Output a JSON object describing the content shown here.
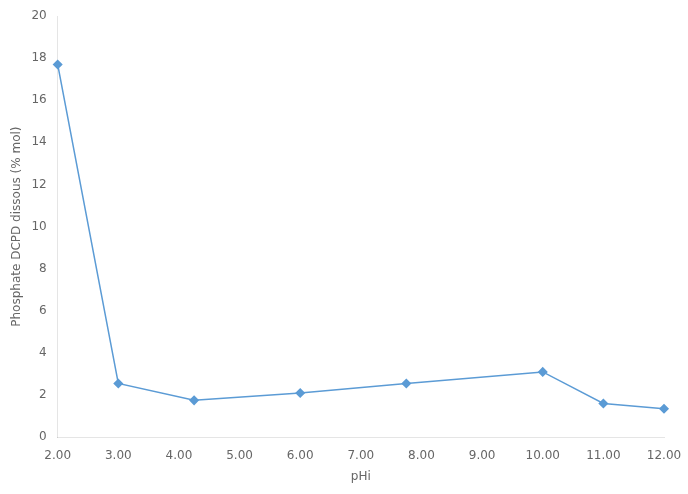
{
  "chart_data": {
    "type": "line",
    "xlabel": "pHi",
    "ylabel": "Phosphate DCPD dissous (% mol)",
    "x": [
      2.0,
      3.0,
      4.25,
      6.0,
      7.75,
      10.0,
      11.0,
      12.0
    ],
    "values": [
      17.7,
      2.55,
      1.75,
      2.1,
      2.55,
      3.1,
      1.6,
      1.35
    ],
    "color": "#5B9BD5",
    "marker": "diamond",
    "xlim": [
      2.0,
      12.0
    ],
    "ylim": [
      0,
      20
    ],
    "xticks": [
      {
        "value": 2.0,
        "label": "2.00"
      },
      {
        "value": 3.0,
        "label": "3.00"
      },
      {
        "value": 4.0,
        "label": "4.00"
      },
      {
        "value": 5.0,
        "label": "5.00"
      },
      {
        "value": 6.0,
        "label": "6.00"
      },
      {
        "value": 7.0,
        "label": "7.00"
      },
      {
        "value": 8.0,
        "label": "8.00"
      },
      {
        "value": 9.0,
        "label": "9.00"
      },
      {
        "value": 10.0,
        "label": "10.00"
      },
      {
        "value": 11.0,
        "label": "11.00"
      },
      {
        "value": 12.0,
        "label": "12.00"
      }
    ],
    "yticks": [
      0,
      2,
      4,
      6,
      8,
      10,
      12,
      14,
      16,
      18,
      20
    ],
    "grid": false
  }
}
